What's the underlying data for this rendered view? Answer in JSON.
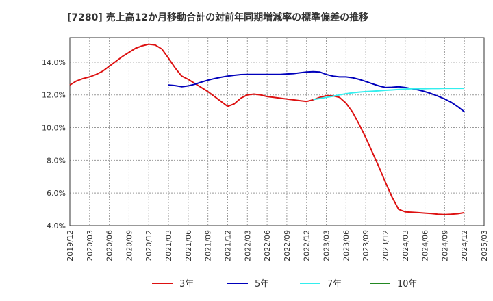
{
  "chart_data": {
    "type": "line",
    "title": "[7280]  売上高12か月移動合計の対前年同期増減率の標準偏差の推移",
    "y_axis": {
      "min": 4.0,
      "max": 15.5,
      "ticks": [
        4.0,
        6.0,
        8.0,
        10.0,
        12.0,
        14.0
      ],
      "tick_labels": [
        "4.0%",
        "6.0%",
        "8.0%",
        "10.0%",
        "12.0%",
        "14.0%"
      ]
    },
    "x_axis": {
      "start": "2019-12",
      "end": "2025-03",
      "tick_labels": [
        "2019/12",
        "2020/03",
        "2020/06",
        "2020/09",
        "2020/12",
        "2021/03",
        "2021/06",
        "2021/09",
        "2021/12",
        "2022/03",
        "2022/06",
        "2022/09",
        "2022/12",
        "2023/03",
        "2023/06",
        "2023/09",
        "2023/12",
        "2024/03",
        "2024/06",
        "2024/09",
        "2024/12",
        "2025/03"
      ]
    },
    "grid": true,
    "legend_position": "bottom",
    "series": [
      {
        "name": "3年",
        "color": "#dd1111",
        "points": [
          [
            "2019-12",
            12.6
          ],
          [
            "2020-01",
            12.85
          ],
          [
            "2020-02",
            13.0
          ],
          [
            "2020-03",
            13.1
          ],
          [
            "2020-04",
            13.25
          ],
          [
            "2020-05",
            13.45
          ],
          [
            "2020-06",
            13.75
          ],
          [
            "2020-07",
            14.05
          ],
          [
            "2020-08",
            14.35
          ],
          [
            "2020-09",
            14.6
          ],
          [
            "2020-10",
            14.85
          ],
          [
            "2020-11",
            15.0
          ],
          [
            "2020-12",
            15.1
          ],
          [
            "2021-01",
            15.05
          ],
          [
            "2021-02",
            14.8
          ],
          [
            "2021-03",
            14.25
          ],
          [
            "2021-04",
            13.65
          ],
          [
            "2021-05",
            13.15
          ],
          [
            "2021-06",
            12.95
          ],
          [
            "2021-07",
            12.7
          ],
          [
            "2021-08",
            12.45
          ],
          [
            "2021-09",
            12.2
          ],
          [
            "2021-10",
            11.9
          ],
          [
            "2021-11",
            11.6
          ],
          [
            "2021-12",
            11.3
          ],
          [
            "2022-01",
            11.45
          ],
          [
            "2022-02",
            11.8
          ],
          [
            "2022-03",
            12.0
          ],
          [
            "2022-04",
            12.05
          ],
          [
            "2022-05",
            12.0
          ],
          [
            "2022-06",
            11.9
          ],
          [
            "2022-07",
            11.85
          ],
          [
            "2022-08",
            11.8
          ],
          [
            "2022-09",
            11.75
          ],
          [
            "2022-10",
            11.7
          ],
          [
            "2022-11",
            11.65
          ],
          [
            "2022-12",
            11.6
          ],
          [
            "2023-01",
            11.7
          ],
          [
            "2023-02",
            11.85
          ],
          [
            "2023-03",
            11.95
          ],
          [
            "2023-04",
            11.95
          ],
          [
            "2023-05",
            11.85
          ],
          [
            "2023-06",
            11.5
          ],
          [
            "2023-07",
            10.95
          ],
          [
            "2023-08",
            10.2
          ],
          [
            "2023-09",
            9.4
          ],
          [
            "2023-10",
            8.5
          ],
          [
            "2023-11",
            7.6
          ],
          [
            "2023-12",
            6.65
          ],
          [
            "2024-01",
            5.75
          ],
          [
            "2024-02",
            5.0
          ],
          [
            "2024-03",
            4.85
          ],
          [
            "2024-04",
            4.83
          ],
          [
            "2024-05",
            4.8
          ],
          [
            "2024-06",
            4.77
          ],
          [
            "2024-07",
            4.74
          ],
          [
            "2024-08",
            4.7
          ],
          [
            "2024-09",
            4.68
          ],
          [
            "2024-10",
            4.7
          ],
          [
            "2024-11",
            4.73
          ],
          [
            "2024-12",
            4.8
          ]
        ]
      },
      {
        "name": "5年",
        "color": "#0000bb",
        "points": [
          [
            "2021-03",
            12.6
          ],
          [
            "2021-04",
            12.57
          ],
          [
            "2021-05",
            12.5
          ],
          [
            "2021-06",
            12.55
          ],
          [
            "2021-07",
            12.65
          ],
          [
            "2021-08",
            12.78
          ],
          [
            "2021-09",
            12.9
          ],
          [
            "2021-10",
            13.0
          ],
          [
            "2021-11",
            13.08
          ],
          [
            "2021-12",
            13.15
          ],
          [
            "2022-01",
            13.2
          ],
          [
            "2022-02",
            13.24
          ],
          [
            "2022-03",
            13.25
          ],
          [
            "2022-04",
            13.25
          ],
          [
            "2022-05",
            13.25
          ],
          [
            "2022-06",
            13.25
          ],
          [
            "2022-07",
            13.25
          ],
          [
            "2022-08",
            13.25
          ],
          [
            "2022-09",
            13.28
          ],
          [
            "2022-10",
            13.3
          ],
          [
            "2022-11",
            13.35
          ],
          [
            "2022-12",
            13.4
          ],
          [
            "2023-01",
            13.42
          ],
          [
            "2023-02",
            13.4
          ],
          [
            "2023-03",
            13.25
          ],
          [
            "2023-04",
            13.15
          ],
          [
            "2023-05",
            13.1
          ],
          [
            "2023-06",
            13.1
          ],
          [
            "2023-07",
            13.05
          ],
          [
            "2023-08",
            12.95
          ],
          [
            "2023-09",
            12.82
          ],
          [
            "2023-10",
            12.68
          ],
          [
            "2023-11",
            12.55
          ],
          [
            "2023-12",
            12.45
          ],
          [
            "2024-01",
            12.47
          ],
          [
            "2024-02",
            12.5
          ],
          [
            "2024-03",
            12.45
          ],
          [
            "2024-04",
            12.38
          ],
          [
            "2024-05",
            12.3
          ],
          [
            "2024-06",
            12.2
          ],
          [
            "2024-07",
            12.07
          ],
          [
            "2024-08",
            11.92
          ],
          [
            "2024-09",
            11.75
          ],
          [
            "2024-10",
            11.55
          ],
          [
            "2024-11",
            11.28
          ],
          [
            "2024-12",
            10.97
          ]
        ]
      },
      {
        "name": "7年",
        "color": "#33eeee",
        "points": [
          [
            "2023-01",
            11.72
          ],
          [
            "2023-02",
            11.78
          ],
          [
            "2023-03",
            11.85
          ],
          [
            "2023-04",
            11.92
          ],
          [
            "2023-05",
            12.0
          ],
          [
            "2023-06",
            12.07
          ],
          [
            "2023-07",
            12.13
          ],
          [
            "2023-08",
            12.17
          ],
          [
            "2023-09",
            12.2
          ],
          [
            "2023-10",
            12.22
          ],
          [
            "2023-11",
            12.25
          ],
          [
            "2023-12",
            12.28
          ],
          [
            "2024-01",
            12.3
          ],
          [
            "2024-02",
            12.33
          ],
          [
            "2024-03",
            12.35
          ],
          [
            "2024-04",
            12.37
          ],
          [
            "2024-05",
            12.38
          ],
          [
            "2024-06",
            12.38
          ],
          [
            "2024-07",
            12.39
          ],
          [
            "2024-08",
            12.39
          ],
          [
            "2024-09",
            12.4
          ],
          [
            "2024-10",
            12.4
          ],
          [
            "2024-11",
            12.4
          ],
          [
            "2024-12",
            12.4
          ]
        ]
      },
      {
        "name": "10年",
        "color": "#228822",
        "points": []
      }
    ]
  }
}
